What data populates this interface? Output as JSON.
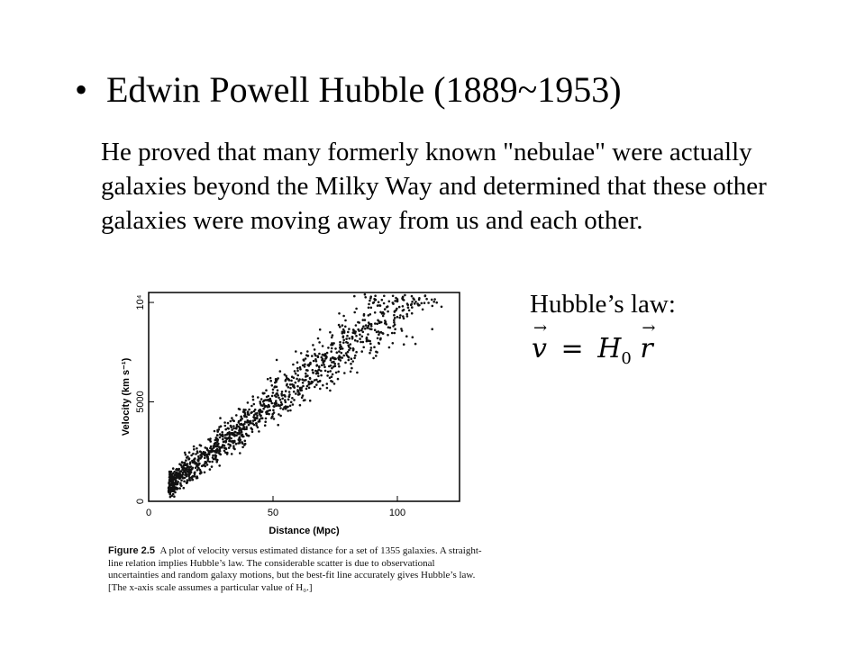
{
  "slide": {
    "bullet": "•",
    "title": "Edwin Powell Hubble (1889~1953)",
    "paragraph": "He proved that many formerly known \"nebulae\" were actually galaxies beyond the Milky Way and determined that these other galaxies were moving away from us and each other.",
    "law_label": "Hubble’s law:",
    "equation": {
      "lhs": "v",
      "equals": "=",
      "h": "H",
      "sub": "0",
      "rhs": "r",
      "arrow": "→"
    },
    "caption": {
      "label": "Figure 2.5",
      "text": "A plot of velocity versus estimated distance for a set of 1355 galaxies. A straight-line relation implies Hubble’s law. The considerable scatter is due to observational uncertainties and random galaxy motions, but the best-fit line accurately gives Hubble’s law. [The x-axis scale assumes a particular value of H₀.]"
    }
  },
  "chart_data": {
    "type": "scatter",
    "xlabel": "Distance (Mpc)",
    "ylabel": "Velocity (km s⁻¹)",
    "xlim": [
      0,
      125
    ],
    "ylim": [
      0,
      10500
    ],
    "xticks": [
      0,
      50,
      100
    ],
    "yticks": [
      0,
      5000,
      10000
    ],
    "ytick_labels": [
      "0",
      "5000",
      "10⁴"
    ],
    "point_count": 1355,
    "trend_slope_kms_per_mpc": 100,
    "point_color": "#111111"
  }
}
